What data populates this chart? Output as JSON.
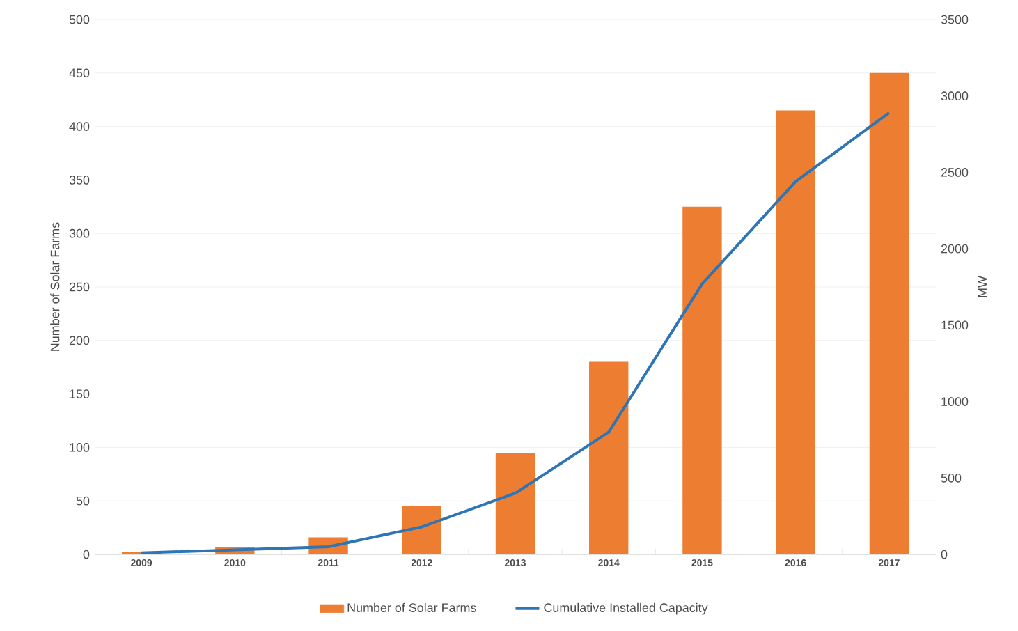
{
  "chart_data": {
    "type": "bar",
    "categories": [
      "2009",
      "2010",
      "2011",
      "2012",
      "2013",
      "2014",
      "2015",
      "2016",
      "2017"
    ],
    "ylabel": "Number of Solar Farms",
    "y2label": "MW",
    "series": [
      {
        "name": "Number of Solar Farms",
        "color": "#ed7d31",
        "values": [
          2,
          7,
          16,
          45,
          95,
          180,
          325,
          415,
          450
        ]
      },
      {
        "name": "Cumulative Installed Capacity",
        "type": "line",
        "axis": "y2",
        "color": "#2e75b6",
        "marker": "none",
        "values": [
          10,
          30,
          50,
          180,
          400,
          800,
          1770,
          2440,
          2890
        ]
      }
    ],
    "ylim": [
      0,
      500
    ],
    "yticks": [
      0,
      50,
      100,
      150,
      200,
      250,
      300,
      350,
      400,
      450,
      500
    ],
    "y2lim": [
      0,
      3500
    ],
    "y2ticks": [
      0,
      500,
      1000,
      1500,
      2000,
      2500,
      3000,
      3500
    ],
    "grid": "y",
    "legend": "bottom"
  }
}
